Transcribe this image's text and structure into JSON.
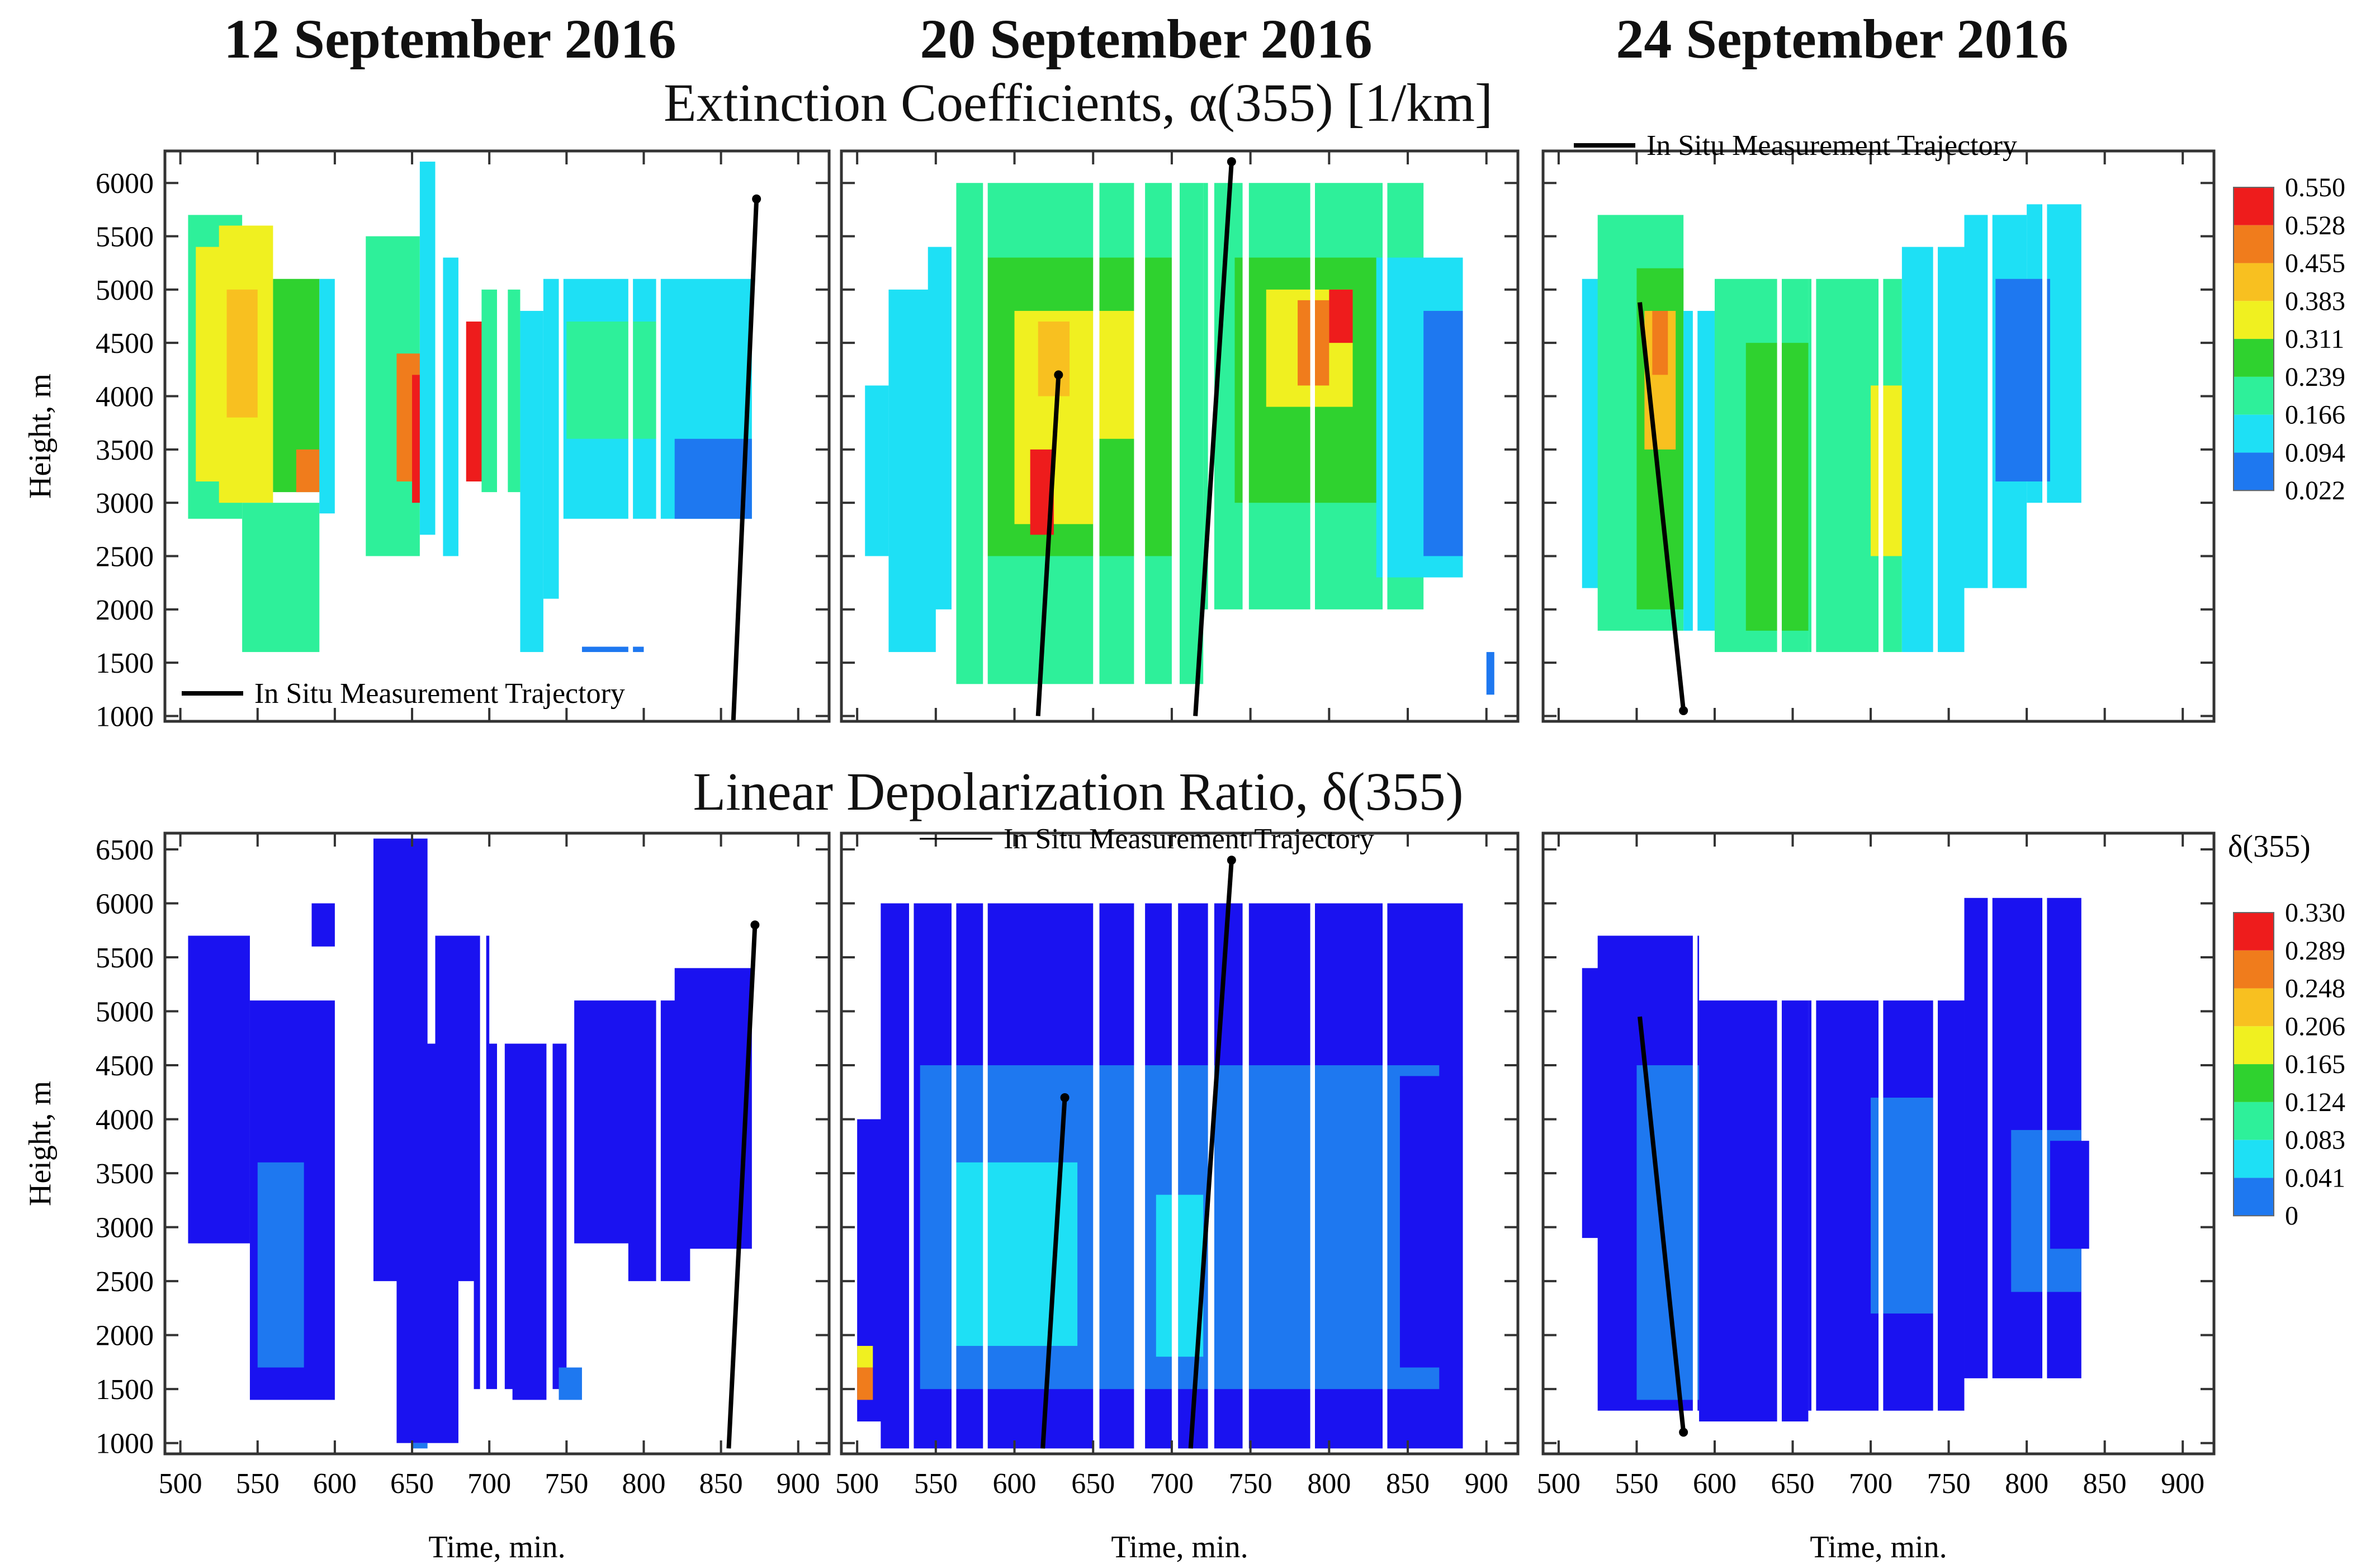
{
  "titles": [
    "12 September 2016",
    "20 September 2016",
    "24 September 2016"
  ],
  "row1_title": "Extinction  Coefficients, α(355)  [1/km]",
  "row2_title": "Linear Depolarization Ratio, δ(355)",
  "colors": [
    "#1a12f0",
    "#1e78f0",
    "#1ee0f5",
    "#2ef09a",
    "#2fd22f",
    "#f0f020",
    "#f8c020",
    "#f07c1c",
    "#ee1c1c"
  ],
  "chart_data": [
    {
      "type": "heatmap",
      "row": "extinction",
      "title": "12 September 2016",
      "xlabel": "",
      "ylabel": "Height, m",
      "xlim": [
        490,
        920
      ],
      "ylim": [
        950,
        6300
      ],
      "yticks": [
        1000,
        1500,
        2000,
        2500,
        3000,
        3500,
        4000,
        4500,
        5000,
        5500,
        6000
      ],
      "xticks": [],
      "legend_label": "In Situ Measurement Trajectory",
      "trajectory": [
        [
          858,
          950
        ],
        [
          873,
          5850
        ]
      ],
      "blocks": [
        [
          505,
          540,
          2850,
          5700,
          3
        ],
        [
          510,
          530,
          3200,
          5400,
          5
        ],
        [
          525,
          560,
          3000,
          5600,
          5
        ],
        [
          530,
          550,
          3800,
          5000,
          6
        ],
        [
          560,
          590,
          3100,
          5100,
          4
        ],
        [
          575,
          590,
          3100,
          3500,
          7
        ],
        [
          590,
          600,
          2900,
          5100,
          2
        ],
        [
          540,
          590,
          1600,
          3000,
          3
        ],
        [
          620,
          655,
          2500,
          5500,
          3
        ],
        [
          640,
          660,
          3200,
          4400,
          7
        ],
        [
          650,
          665,
          3000,
          4200,
          8
        ],
        [
          655,
          665,
          2700,
          6200,
          2
        ],
        [
          670,
          680,
          2500,
          5300,
          2
        ],
        [
          685,
          700,
          3200,
          4700,
          8
        ],
        [
          695,
          720,
          3100,
          5000,
          3
        ],
        [
          720,
          735,
          1600,
          4800,
          2
        ],
        [
          735,
          745,
          2100,
          5100,
          2
        ],
        [
          745,
          870,
          2850,
          5100,
          2
        ],
        [
          750,
          810,
          3600,
          4700,
          3
        ],
        [
          820,
          870,
          2850,
          3600,
          1
        ],
        [
          760,
          800,
          1600,
          1650,
          1
        ]
      ],
      "blanks": [
        [
          600,
          620
        ],
        [
          612,
          618
        ],
        [
          666,
          670
        ],
        [
          705,
          712
        ],
        [
          745,
          748
        ],
        [
          790,
          793
        ],
        [
          808,
          811
        ]
      ]
    },
    {
      "type": "heatmap",
      "row": "extinction",
      "title": "20 September 2016",
      "xlabel": "",
      "ylabel": "",
      "xlim": [
        490,
        920
      ],
      "ylim": [
        950,
        6300
      ],
      "yticks": [
        1000,
        1500,
        2000,
        2500,
        3000,
        3500,
        4000,
        4500,
        5000,
        5500,
        6000
      ],
      "xticks": [],
      "legend_label": "",
      "trajectory": [
        [
          615,
          1000
        ],
        [
          628,
          4200
        ]
      ],
      "trajectory2": [
        [
          715,
          1000
        ],
        [
          738,
          6200
        ]
      ],
      "blocks": [
        [
          505,
          520,
          2500,
          4100,
          2
        ],
        [
          520,
          550,
          1600,
          5000,
          2
        ],
        [
          545,
          565,
          2000,
          5400,
          2
        ],
        [
          560,
          720,
          1300,
          6000,
          3
        ],
        [
          580,
          700,
          2500,
          5300,
          4
        ],
        [
          600,
          650,
          2800,
          4800,
          5
        ],
        [
          615,
          635,
          4000,
          4700,
          6
        ],
        [
          610,
          625,
          2700,
          3500,
          8
        ],
        [
          640,
          680,
          3600,
          4800,
          5
        ],
        [
          720,
          860,
          2000,
          6000,
          3
        ],
        [
          740,
          830,
          3000,
          5300,
          4
        ],
        [
          760,
          815,
          3900,
          5000,
          5
        ],
        [
          780,
          800,
          4100,
          4900,
          7
        ],
        [
          800,
          815,
          4500,
          5000,
          8
        ],
        [
          830,
          885,
          2300,
          5300,
          2
        ],
        [
          860,
          885,
          2500,
          4800,
          1
        ],
        [
          900,
          905,
          1200,
          1600,
          1
        ]
      ],
      "blanks": [
        [
          560,
          563
        ],
        [
          580,
          583
        ],
        [
          650,
          654
        ],
        [
          676,
          683
        ],
        [
          700,
          705
        ],
        [
          723,
          727
        ],
        [
          745,
          749
        ],
        [
          788,
          791
        ],
        [
          834,
          837
        ]
      ]
    },
    {
      "type": "heatmap",
      "row": "extinction",
      "title": "24 September 2016",
      "xlabel": "",
      "ylabel": "",
      "xlim": [
        490,
        920
      ],
      "ylim": [
        950,
        6300
      ],
      "yticks": [
        1000,
        1500,
        2000,
        2500,
        3000,
        3500,
        4000,
        4500,
        5000,
        5500,
        6000
      ],
      "xticks": [],
      "legend_label": "In Situ Measurement Trajectory",
      "trajectory": [
        [
          552,
          4880
        ],
        [
          580,
          1050
        ]
      ],
      "blocks": [
        [
          515,
          540,
          2200,
          5100,
          2
        ],
        [
          525,
          580,
          1800,
          5700,
          3
        ],
        [
          550,
          580,
          2000,
          5200,
          4
        ],
        [
          555,
          575,
          3500,
          4800,
          6
        ],
        [
          560,
          570,
          4200,
          4800,
          7
        ],
        [
          580,
          600,
          1800,
          4800,
          2
        ],
        [
          600,
          660,
          1600,
          5100,
          3
        ],
        [
          620,
          690,
          1800,
          4500,
          4
        ],
        [
          660,
          720,
          1600,
          5100,
          3
        ],
        [
          700,
          740,
          2500,
          4100,
          5
        ],
        [
          720,
          760,
          1600,
          5400,
          2
        ],
        [
          760,
          800,
          2200,
          5700,
          2
        ],
        [
          800,
          835,
          3000,
          5800,
          2
        ],
        [
          780,
          815,
          3200,
          5100,
          1
        ]
      ],
      "blanks": [
        [
          586,
          589
        ],
        [
          640,
          643
        ],
        [
          662,
          665
        ],
        [
          705,
          708
        ],
        [
          740,
          743
        ],
        [
          775,
          778
        ],
        [
          810,
          813
        ]
      ]
    },
    {
      "type": "heatmap",
      "row": "depolarization",
      "title": "12 September 2016",
      "xlabel": "Time, min.",
      "ylabel": "Height, m",
      "xlim": [
        490,
        920
      ],
      "ylim": [
        900,
        6650
      ],
      "yticks": [
        1000,
        1500,
        2000,
        2500,
        3000,
        3500,
        4000,
        4500,
        5000,
        5500,
        6000,
        6500
      ],
      "xticks": [
        500,
        550,
        600,
        650,
        700,
        750,
        800,
        850,
        900
      ],
      "legend_label": "",
      "trajectory": [
        [
          855,
          950
        ],
        [
          872,
          5800
        ]
      ],
      "blocks": [
        [
          505,
          545,
          2850,
          5700,
          0
        ],
        [
          545,
          600,
          1400,
          5100,
          0
        ],
        [
          550,
          580,
          1700,
          3600,
          1
        ],
        [
          585,
          600,
          5600,
          6000,
          0
        ],
        [
          625,
          660,
          2500,
          6600,
          0
        ],
        [
          640,
          680,
          1000,
          4700,
          0
        ],
        [
          665,
          700,
          2500,
          5700,
          0
        ],
        [
          690,
          750,
          1500,
          4700,
          0
        ],
        [
          715,
          740,
          1400,
          2400,
          0
        ],
        [
          745,
          760,
          1400,
          1700,
          1
        ],
        [
          755,
          850,
          2850,
          5100,
          0
        ],
        [
          790,
          830,
          2500,
          3200,
          0
        ],
        [
          820,
          870,
          2800,
          5400,
          0
        ],
        [
          650,
          660,
          950,
          1000,
          1
        ]
      ],
      "blanks": [
        [
          612,
          620
        ],
        [
          694,
          698
        ],
        [
          705,
          710
        ],
        [
          737,
          741
        ],
        [
          808,
          811
        ]
      ]
    },
    {
      "type": "heatmap",
      "row": "depolarization",
      "title": "20 September 2016",
      "xlabel": "Time, min.",
      "ylabel": "",
      "xlim": [
        490,
        920
      ],
      "ylim": [
        900,
        6650
      ],
      "yticks": [
        1000,
        1500,
        2000,
        2500,
        3000,
        3500,
        4000,
        4500,
        5000,
        5500,
        6000,
        6500
      ],
      "xticks": [
        500,
        550,
        600,
        650,
        700,
        750,
        800,
        850,
        900
      ],
      "legend_label": "In Situ Measurement Trajectory",
      "trajectory": [
        [
          618,
          950
        ],
        [
          632,
          4200
        ]
      ],
      "trajectory2": [
        [
          712,
          950
        ],
        [
          738,
          6400
        ]
      ],
      "blocks": [
        [
          500,
          520,
          1200,
          4000,
          0
        ],
        [
          515,
          885,
          950,
          6000,
          0
        ],
        [
          540,
          870,
          1500,
          4500,
          1
        ],
        [
          560,
          640,
          1900,
          3600,
          2
        ],
        [
          690,
          720,
          1800,
          3300,
          2
        ],
        [
          780,
          850,
          2700,
          4200,
          1
        ],
        [
          845,
          885,
          1700,
          4400,
          0
        ],
        [
          500,
          510,
          1400,
          1700,
          7
        ],
        [
          500,
          510,
          1700,
          1900,
          5
        ]
      ],
      "blanks": [
        [
          533,
          536
        ],
        [
          560,
          563
        ],
        [
          580,
          583
        ],
        [
          650,
          654
        ],
        [
          676,
          683
        ],
        [
          700,
          704
        ],
        [
          723,
          727
        ],
        [
          745,
          749
        ],
        [
          788,
          791
        ],
        [
          834,
          837
        ]
      ]
    },
    {
      "type": "heatmap",
      "row": "depolarization",
      "title": "24 September 2016",
      "xlabel": "Time, min.",
      "ylabel": "",
      "xlim": [
        490,
        920
      ],
      "ylim": [
        900,
        6650
      ],
      "yticks": [
        1000,
        1500,
        2000,
        2500,
        3000,
        3500,
        4000,
        4500,
        5000,
        5500,
        6000,
        6500
      ],
      "xticks": [
        500,
        550,
        600,
        650,
        700,
        750,
        800,
        850,
        900
      ],
      "legend_label": "",
      "trajectory": [
        [
          552,
          4950
        ],
        [
          580,
          1100
        ]
      ],
      "blocks": [
        [
          515,
          545,
          2900,
          5400,
          0
        ],
        [
          525,
          590,
          1300,
          5700,
          0
        ],
        [
          550,
          590,
          1400,
          4500,
          1
        ],
        [
          590,
          660,
          1200,
          5100,
          0
        ],
        [
          660,
          760,
          1300,
          5100,
          0
        ],
        [
          700,
          740,
          2200,
          4200,
          1
        ],
        [
          760,
          835,
          1600,
          6050,
          0
        ],
        [
          790,
          835,
          2400,
          3900,
          1
        ],
        [
          815,
          840,
          2800,
          3800,
          0
        ]
      ],
      "blanks": [
        [
          586,
          589
        ],
        [
          640,
          643
        ],
        [
          662,
          665
        ],
        [
          705,
          708
        ],
        [
          740,
          743
        ],
        [
          775,
          778
        ],
        [
          810,
          813
        ]
      ]
    },
    {
      "type": "bar",
      "row": "extinction-colorbar",
      "title": "",
      "labels": [
        "0.550",
        "0.528",
        "0.455",
        "0.383",
        "0.311",
        "0.239",
        "0.166",
        "0.094",
        "0.022"
      ]
    },
    {
      "type": "bar",
      "row": "depolarization-colorbar",
      "title": "δ(355)",
      "labels": [
        "0.330",
        "0.289",
        "0.248",
        "0.206",
        "0.165",
        "0.124",
        "0.083",
        "0.041",
        "0"
      ]
    }
  ]
}
